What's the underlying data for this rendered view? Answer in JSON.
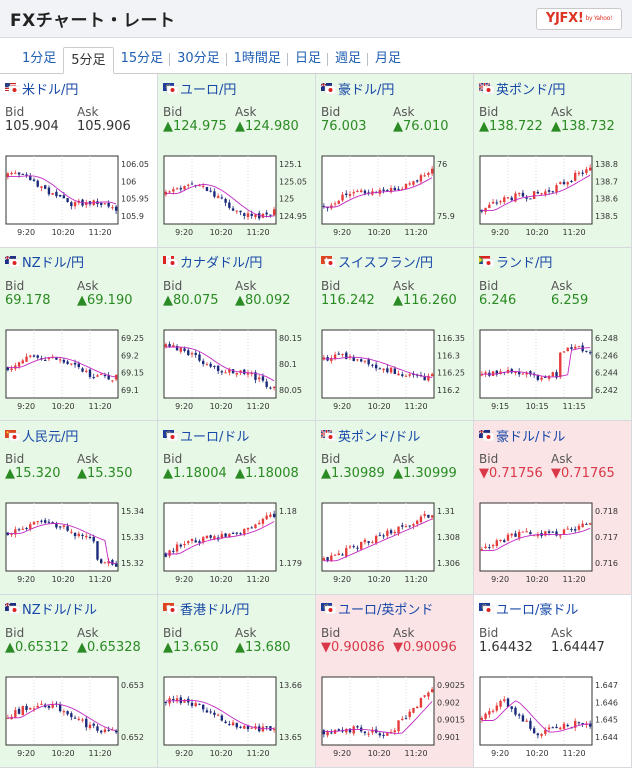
{
  "header": {
    "title": "FXチャート・レート",
    "logo_text": "YJFX!",
    "logo_sub": "by Yahoo!"
  },
  "tabs": [
    {
      "label": "1分足",
      "active": false
    },
    {
      "label": "5分足",
      "active": true
    },
    {
      "label": "15分足",
      "active": false
    },
    {
      "label": "30分足",
      "active": false
    },
    {
      "label": "1時間足",
      "active": false
    },
    {
      "label": "日足",
      "active": false
    },
    {
      "label": "週足",
      "active": false
    },
    {
      "label": "月足",
      "active": false
    }
  ],
  "labels": {
    "bid": "Bid",
    "ask": "Ask"
  },
  "colors": {
    "up_bg": "#e8f8e6",
    "down_bg": "#fbe4e6",
    "up_text": "#2a8a23",
    "down_text": "#d93849",
    "link": "#1748a8"
  },
  "pairs": [
    {
      "name": "米ドル/円",
      "flag": "us-jp-flag-icon",
      "state": "flat",
      "bid": "105.904",
      "ask": "105.906",
      "yticks": [
        "106.05",
        "106",
        "105.95",
        "105.9"
      ],
      "xticks": [
        "9:20",
        "10:20",
        "11:20"
      ]
    },
    {
      "name": "ユーロ/円",
      "flag": "eu-jp-flag-icon",
      "state": "up",
      "bid": "▲124.975",
      "ask": "▲124.980",
      "yticks": [
        "125.1",
        "125.05",
        "125",
        "124.95"
      ],
      "xticks": [
        "9:20",
        "10:20",
        "11:20"
      ]
    },
    {
      "name": "豪ドル/円",
      "flag": "au-jp-flag-icon",
      "state": "up",
      "bid": "76.003",
      "ask": "▲76.010",
      "yticks": [
        "76",
        "75.9"
      ],
      "xticks": [
        "9:20",
        "10:20",
        "11:20"
      ]
    },
    {
      "name": "英ポンド/円",
      "flag": "gb-jp-flag-icon",
      "state": "up",
      "bid": "▲138.722",
      "ask": "▲138.732",
      "yticks": [
        "138.8",
        "138.7",
        "138.6",
        "138.5"
      ],
      "xticks": [
        "9:20",
        "10:20",
        "11:20"
      ]
    },
    {
      "name": "NZドル/円",
      "flag": "nz-jp-flag-icon",
      "state": "up",
      "bid": "69.178",
      "ask": "▲69.190",
      "yticks": [
        "69.25",
        "69.2",
        "69.15",
        "69.1"
      ],
      "xticks": [
        "9:20",
        "10:20",
        "11:20"
      ]
    },
    {
      "name": "カナダドル/円",
      "flag": "ca-jp-flag-icon",
      "state": "up",
      "bid": "▲80.075",
      "ask": "▲80.092",
      "yticks": [
        "80.15",
        "80.1",
        "80.05"
      ],
      "xticks": [
        "9:20",
        "10:20",
        "11:20"
      ]
    },
    {
      "name": "スイスフラン/円",
      "flag": "ch-jp-flag-icon",
      "state": "up",
      "bid": "116.242",
      "ask": "▲116.260",
      "yticks": [
        "116.35",
        "116.3",
        "116.25",
        "116.2"
      ],
      "xticks": [
        "9:20",
        "10:20",
        "11:20"
      ]
    },
    {
      "name": "ランド/円",
      "flag": "za-jp-flag-icon",
      "state": "up",
      "bid": "6.246",
      "ask": "6.259",
      "yticks": [
        "6.248",
        "6.246",
        "6.244",
        "6.242"
      ],
      "xticks": [
        "9:15",
        "10:15",
        "11:15"
      ]
    },
    {
      "name": "人民元/円",
      "flag": "cn-jp-flag-icon",
      "state": "up",
      "bid": "▲15.320",
      "ask": "▲15.350",
      "yticks": [
        "15.34",
        "15.33",
        "15.32"
      ],
      "xticks": [
        "9:20",
        "10:20",
        "11:20"
      ]
    },
    {
      "name": "ユーロ/ドル",
      "flag": "eu-us-flag-icon",
      "state": "up",
      "bid": "▲1.18004",
      "ask": "▲1.18008",
      "yticks": [
        "1.18",
        "1.179"
      ],
      "xticks": [
        "9:20",
        "10:20",
        "11:20"
      ]
    },
    {
      "name": "英ポンド/ドル",
      "flag": "gb-us-flag-icon",
      "state": "up",
      "bid": "▲1.30989",
      "ask": "▲1.30999",
      "yticks": [
        "1.31",
        "1.308",
        "1.306"
      ],
      "xticks": [
        "9:20",
        "10:20",
        "11:20"
      ]
    },
    {
      "name": "豪ドル/ドル",
      "flag": "au-us-flag-icon",
      "state": "down",
      "bid": "▼0.71756",
      "ask": "▼0.71765",
      "yticks": [
        "0.718",
        "0.717",
        "0.716"
      ],
      "xticks": [
        "9:20",
        "10:20",
        "11:20"
      ]
    },
    {
      "name": "NZドル/ドル",
      "flag": "nz-us-flag-icon",
      "state": "up",
      "bid": "▲0.65312",
      "ask": "▲0.65328",
      "yticks": [
        "0.653",
        "0.652"
      ],
      "xticks": [
        "9:20",
        "10:20",
        "11:20"
      ]
    },
    {
      "name": "香港ドル/円",
      "flag": "hk-jp-flag-icon",
      "state": "up",
      "bid": "▲13.650",
      "ask": "▲13.680",
      "yticks": [
        "13.66",
        "13.65"
      ],
      "xticks": [
        "9:20",
        "10:20",
        "11:20"
      ]
    },
    {
      "name": "ユーロ/英ポンド",
      "flag": "eu-gb-flag-icon",
      "state": "down",
      "bid": "▼0.90086",
      "ask": "▼0.90096",
      "yticks": [
        "0.9025",
        "0.902",
        "0.9015",
        "0.901"
      ],
      "xticks": [
        "9:20",
        "10:20",
        "11:20"
      ]
    },
    {
      "name": "ユーロ/豪ドル",
      "flag": "eu-au-flag-icon",
      "state": "flat",
      "bid": "1.64432",
      "ask": "1.64447",
      "yticks": [
        "1.647",
        "1.646",
        "1.645",
        "1.644"
      ],
      "xticks": [
        "9:20",
        "10:20",
        "11:20"
      ]
    }
  ]
}
